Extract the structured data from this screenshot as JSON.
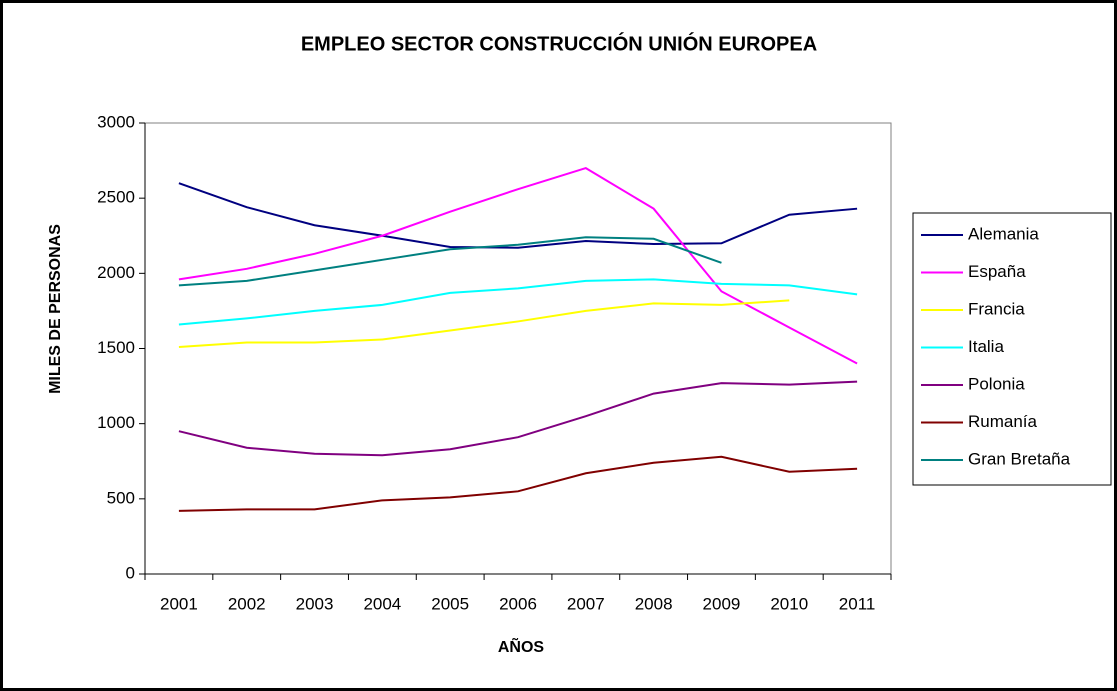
{
  "chart_data": {
    "type": "line",
    "title": "EMPLEO SECTOR CONSTRUCCIÓN UNIÓN EUROPEA",
    "x_label": "AÑOS",
    "y_label": "MILES DE PERSONAS",
    "categories": [
      "2001",
      "2002",
      "2003",
      "2004",
      "2005",
      "2006",
      "2007",
      "2008",
      "2009",
      "2010",
      "2011"
    ],
    "ylim": [
      0,
      3000
    ],
    "yticks": [
      0,
      500,
      1000,
      1500,
      2000,
      2500,
      3000
    ],
    "grid": false,
    "legend": "right",
    "series": [
      {
        "name": "Alemania",
        "color": "#000080",
        "values": [
          2600,
          2440,
          2320,
          2250,
          2175,
          2170,
          2215,
          2195,
          2200,
          2390,
          2430
        ]
      },
      {
        "name": "España",
        "color": "#ff00ff",
        "values": [
          1960,
          2030,
          2130,
          2250,
          2410,
          2560,
          2700,
          2430,
          1880,
          1640,
          1400
        ]
      },
      {
        "name": "Francia",
        "color": "#ffff00",
        "values": [
          1510,
          1540,
          1540,
          1560,
          1620,
          1680,
          1750,
          1800,
          1790,
          1820,
          null
        ]
      },
      {
        "name": "Italia",
        "color": "#00ffff",
        "values": [
          1660,
          1700,
          1750,
          1790,
          1870,
          1900,
          1950,
          1960,
          1930,
          1920,
          1860
        ]
      },
      {
        "name": "Polonia",
        "color": "#800080",
        "values": [
          950,
          840,
          800,
          790,
          830,
          910,
          1050,
          1200,
          1270,
          1260,
          1280
        ]
      },
      {
        "name": "Rumanía",
        "color": "#800000",
        "values": [
          420,
          430,
          430,
          490,
          510,
          550,
          670,
          740,
          780,
          680,
          700
        ]
      },
      {
        "name": "Gran Bretaña",
        "color": "#008080",
        "values": [
          1920,
          1950,
          2020,
          2090,
          2160,
          2190,
          2240,
          2230,
          2070,
          null,
          null
        ]
      }
    ]
  }
}
